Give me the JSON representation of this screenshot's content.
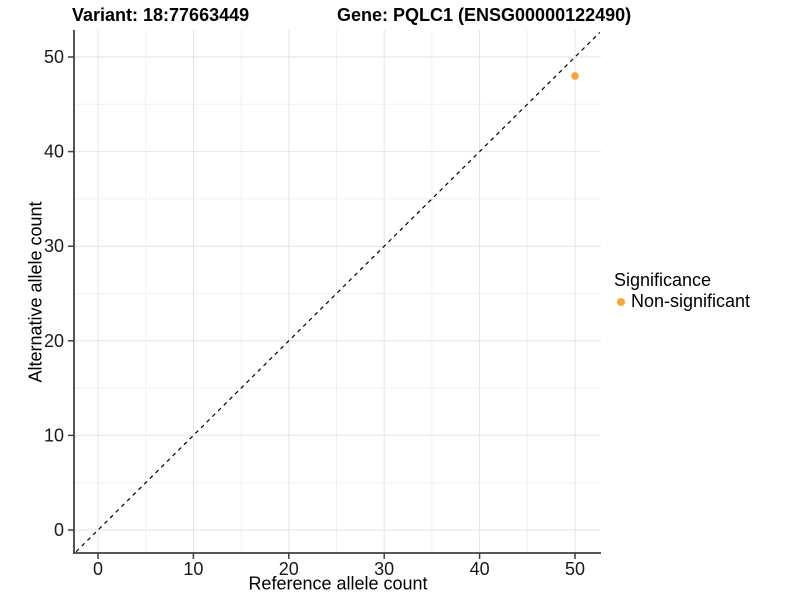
{
  "header": {
    "variant_title": "Variant: 18:77663449",
    "gene_title": "Gene: PQLC1 (ENSG00000122490)"
  },
  "legend": {
    "title": "Significance",
    "items": [
      {
        "label": "Non-significant",
        "marker": "dot-icon",
        "color": "#FAA43A"
      }
    ]
  },
  "chart_data": {
    "type": "scatter",
    "title": "Variant: 18:77663449   Gene: PQLC1 (ENSG00000122490)",
    "xlabel": "Reference allele count",
    "ylabel": "Alternative allele count",
    "xlim": [
      -2.5,
      52.6
    ],
    "ylim": [
      -2.4,
      52.9
    ],
    "x_ticks": [
      0,
      10,
      20,
      30,
      40,
      50
    ],
    "y_ticks": [
      0,
      10,
      20,
      30,
      40,
      50
    ],
    "minor_grid_values": [
      5,
      15,
      25,
      35,
      45
    ],
    "grid": true,
    "legend_position": "right",
    "series": [
      {
        "name": "Non-significant",
        "color": "#FAA43A",
        "marker": "circle",
        "points": [
          {
            "x": 50,
            "y": 48
          }
        ]
      }
    ],
    "reference_line": {
      "kind": "identity y=x",
      "style": "dashed",
      "color": "#000000"
    },
    "style_colors": {
      "background": "#FFFFFF",
      "grid_major": "#E4E4E4",
      "grid_minor": "#F0F0F0",
      "axis_line": "#404040",
      "tick_text": "#1A1A1A"
    }
  }
}
